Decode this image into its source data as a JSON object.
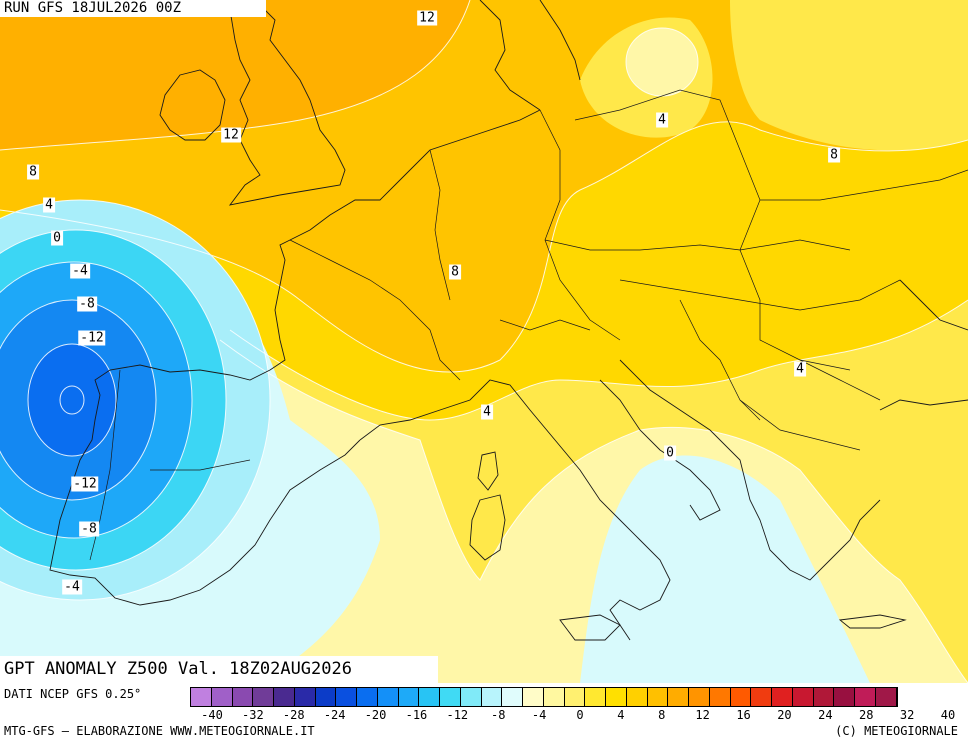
{
  "header": {
    "run": "RUN GFS 18JUL2026 00Z"
  },
  "title": "GPT ANOMALY Z500 Val. 18Z02AUG2026",
  "footer": {
    "source": "DATI NCEP GFS 0.25°",
    "credit_left": "MTG-GFS — ELABORAZIONE WWW.METEOGIORNALE.IT",
    "credit_right": "(C) METEOGIORNALE"
  },
  "colorbar": {
    "colors": [
      "#c080e0",
      "#a060c8",
      "#8a4ab0",
      "#703c98",
      "#4a2a90",
      "#2a2aa8",
      "#0c3cc8",
      "#0a50e0",
      "#0a6ef0",
      "#1490f8",
      "#1eaaf8",
      "#28c4f4",
      "#40daf4",
      "#80eaf8",
      "#b8f4fc",
      "#e0fcfc",
      "#fffcc8",
      "#fff8a0",
      "#fff070",
      "#ffe830",
      "#ffe000",
      "#ffd000",
      "#ffc000",
      "#ffac00",
      "#ff9400",
      "#ff7800",
      "#ff5a00",
      "#f03c10",
      "#e02020",
      "#c81830",
      "#b01838",
      "#981040",
      "#c01c58",
      "#a01848"
    ],
    "ticks": [
      "-40",
      "-32",
      "-28",
      "-24",
      "-20",
      "-16",
      "-12",
      "-8",
      "-4",
      "0",
      "4",
      "8",
      "12",
      "16",
      "20",
      "24",
      "28",
      "32",
      "40"
    ]
  },
  "contour_labels": [
    {
      "text": "12",
      "name": "contour-label-12-north-sea"
    },
    {
      "text": "12",
      "name": "contour-label-12-ireland"
    },
    {
      "text": "8",
      "name": "contour-label-8-atlantic"
    },
    {
      "text": "4",
      "name": "contour-label-4-atlantic"
    },
    {
      "text": "0",
      "name": "contour-label-0-atlantic"
    },
    {
      "text": "-4",
      "name": "contour-label-minus4-atlantic"
    },
    {
      "text": "-8",
      "name": "contour-label-minus8-atlantic"
    },
    {
      "text": "-12",
      "name": "contour-label-minus12-north"
    },
    {
      "text": "-12",
      "name": "contour-label-minus12-south"
    },
    {
      "text": "-8",
      "name": "contour-label-minus8-south"
    },
    {
      "text": "-4",
      "name": "contour-label-minus4-south"
    },
    {
      "text": "4",
      "name": "contour-label-4-poland"
    },
    {
      "text": "8",
      "name": "contour-label-8-belarus"
    },
    {
      "text": "8",
      "name": "contour-label-8-france"
    },
    {
      "text": "4",
      "name": "contour-label-4-ligurian"
    },
    {
      "text": "4",
      "name": "contour-label-4-romania"
    },
    {
      "text": "0",
      "name": "contour-label-0-adriatic"
    }
  ],
  "map_colors": {
    "orange": "#ffb000",
    "orange_light": "#ffc400",
    "yellow": "#ffd800",
    "yellow_light": "#ffe84a",
    "pale_yellow": "#fff7a8",
    "pale_cyan": "#d8fafc",
    "cyan_light": "#a8eefa",
    "cyan": "#3cd6f4",
    "blue_light": "#1ea8f8",
    "blue": "#1488f2",
    "blue_dark": "#0a6ef0"
  }
}
